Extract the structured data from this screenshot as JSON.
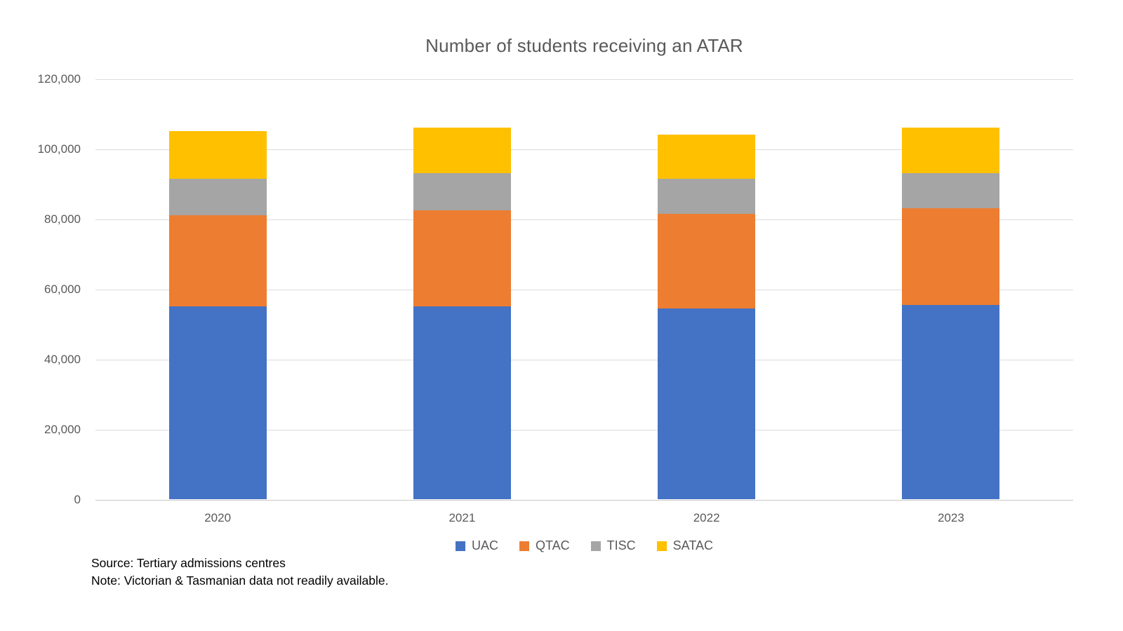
{
  "title": "Number of students receiving an ATAR",
  "chart_data": {
    "type": "bar",
    "stacked": true,
    "title": "Number of students receiving an ATAR",
    "xlabel": "",
    "ylabel": "",
    "categories": [
      "2020",
      "2021",
      "2022",
      "2023"
    ],
    "series": [
      {
        "name": "UAC",
        "color": "#4472C4",
        "values": [
          55000,
          55000,
          54500,
          55500
        ]
      },
      {
        "name": "QTAC",
        "color": "#ED7D31",
        "values": [
          26000,
          27500,
          27000,
          27500
        ]
      },
      {
        "name": "TISC",
        "color": "#A5A5A5",
        "values": [
          10500,
          10500,
          10000,
          10000
        ]
      },
      {
        "name": "SATAC",
        "color": "#FFC000",
        "values": [
          13500,
          13000,
          12500,
          13000
        ]
      }
    ],
    "stack_totals": [
      105000,
      106000,
      104000,
      106000
    ],
    "ylim": [
      0,
      120000
    ],
    "ytick_interval": 20000,
    "ytick_labels": [
      "120,000",
      "100,000",
      "80,000",
      "60,000",
      "40,000",
      "20,000",
      "0"
    ],
    "grid": true,
    "legend_position": "bottom"
  },
  "legend": {
    "items": [
      "UAC",
      "QTAC",
      "TISC",
      "SATAC"
    ]
  },
  "footer": {
    "source": "Source: Tertiary admissions centres",
    "note": "Note: Victorian & Tasmanian data not readily available."
  },
  "colors": {
    "background": "#ffffff",
    "gridline": "#dcdcdc",
    "axis_line": "#c9c9c9",
    "text": "#595959",
    "footer_text": "#000000"
  }
}
